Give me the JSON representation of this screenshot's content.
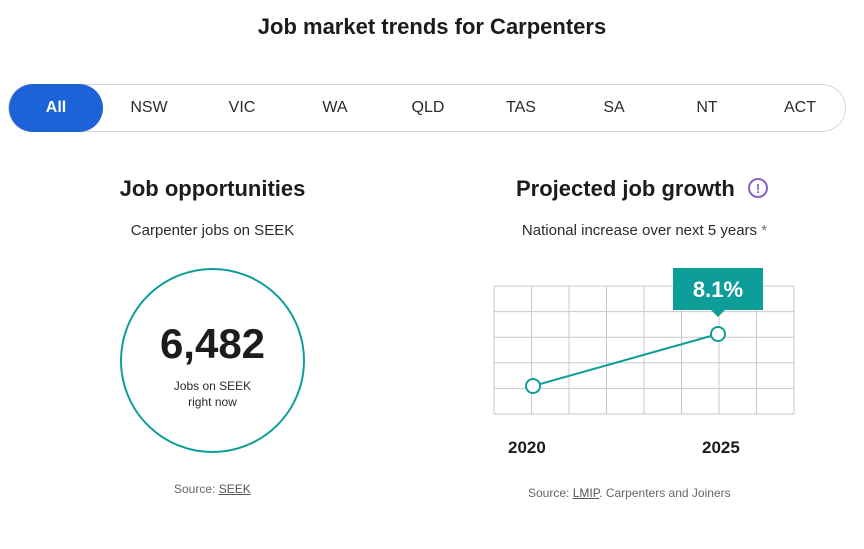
{
  "title": "Job market trends for Carpenters",
  "tabs": [
    "All",
    "NSW",
    "VIC",
    "WA",
    "QLD",
    "TAS",
    "SA",
    "NT",
    "ACT"
  ],
  "active_tab": "All",
  "opportunities": {
    "heading": "Job opportunities",
    "subtitle": "Carpenter jobs on SEEK",
    "count": "6,482",
    "caption_line1": "Jobs on SEEK",
    "caption_line2": "right now",
    "source_prefix": "Source:",
    "source_link": "SEEK"
  },
  "growth": {
    "heading": "Projected job growth",
    "info_icon": "info-icon",
    "subtitle": "National increase over next 5 years",
    "asterisk": "*",
    "source_prefix": "Source:",
    "source_link": "LMIP",
    "source_suffix": ". Carpenters and Joiners"
  },
  "chart_data": {
    "type": "line",
    "x": [
      "2020",
      "2025"
    ],
    "series": [
      {
        "values": [
          0,
          8.1
        ]
      }
    ],
    "data_labels": [
      "",
      "8.1%"
    ],
    "grid": true
  },
  "colors": {
    "accent": "#1b63d6",
    "teal": "#0e9e9a",
    "info": "#8a5fc8",
    "grid": "#c8c8c8"
  }
}
